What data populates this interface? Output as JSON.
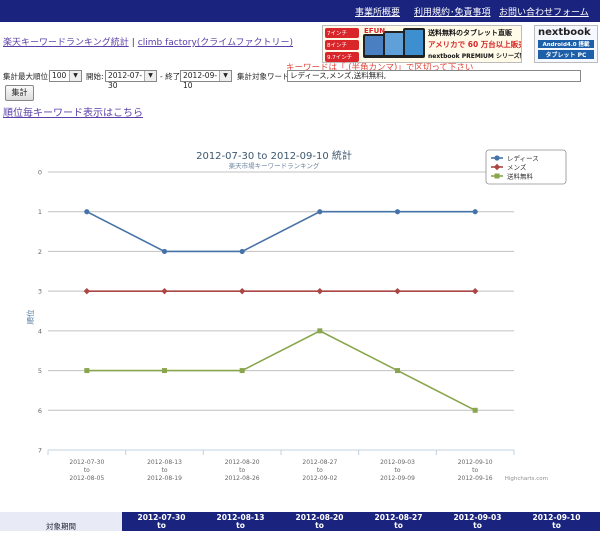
{
  "topnav": {
    "items": [
      "事業所概要",
      "利用規約･免責事項",
      "お問い合わせフォーム"
    ]
  },
  "site": {
    "title_link": "楽天キーワードランキング統計",
    "separator": "|",
    "company_link": "climb factory(クライムファクトリー)"
  },
  "ads": {
    "ad1": {
      "labels": [
        "7インチ",
        "8インチ",
        "9.7インチ"
      ],
      "brand": "EFUN",
      "line1": "送料無料のタブレット直販",
      "line2": "アメリカで 60 万台以上販売実績",
      "line3": "nextbook PREMIUM シリーズ新発売"
    },
    "ad2": {
      "brand": "nextbook",
      "line1": "Android4.0 搭載",
      "line2": "タブレット PC"
    }
  },
  "form": {
    "hint": "キーワードは「,(半角カンマ)」で区切って下さい",
    "max_rank_label": "集計最大順位:",
    "max_rank_value": "100",
    "start_label": "開始:",
    "start_value": "2012-07-30",
    "end_label": "- 終了:",
    "end_value": "2012-09-10",
    "keyword_label": "集計対象ワード:",
    "keyword_value": "レディース,メンズ,送料無料,",
    "submit_label": "集計"
  },
  "rank_link": "順位毎キーワード表示はこちら",
  "chart_data": {
    "type": "line",
    "title": "2012-07-30 to 2012-09-10 統計",
    "subtitle": "楽天市場キーワードランキング",
    "xlabel": "",
    "ylabel": "順位",
    "categories": [
      [
        "2012-07-30",
        "to",
        "2012-08-05"
      ],
      [
        "2012-08-13",
        "to",
        "2012-08-19"
      ],
      [
        "2012-08-20",
        "to",
        "2012-08-26"
      ],
      [
        "2012-08-27",
        "to",
        "2012-09-02"
      ],
      [
        "2012-09-03",
        "to",
        "2012-09-09"
      ],
      [
        "2012-09-10",
        "to",
        "2012-09-16"
      ]
    ],
    "y_ticks": [
      0,
      1,
      2,
      3,
      4,
      5,
      6,
      7
    ],
    "ylim": [
      0,
      7
    ],
    "y_reversed": true,
    "grid": true,
    "legend_position": "top-right",
    "credit": "Highcharts.com",
    "series": [
      {
        "name": "レディース",
        "values": [
          1,
          2,
          2,
          1,
          1,
          1
        ],
        "color": "#4572a7",
        "marker": "circle"
      },
      {
        "name": "メンズ",
        "values": [
          3,
          3,
          3,
          3,
          3,
          3
        ],
        "color": "#aa4643",
        "marker": "diamond"
      },
      {
        "name": "送料無料",
        "values": [
          5,
          5,
          5,
          4,
          5,
          6
        ],
        "color": "#89a54e",
        "marker": "square"
      }
    ]
  },
  "table": {
    "header": "対象期間",
    "columns": [
      [
        "2012-07-30",
        "to"
      ],
      [
        "2012-08-13",
        "to"
      ],
      [
        "2012-08-20",
        "to"
      ],
      [
        "2012-08-27",
        "to"
      ],
      [
        "2012-09-03",
        "to"
      ],
      [
        "2012-09-10",
        "to"
      ]
    ]
  }
}
